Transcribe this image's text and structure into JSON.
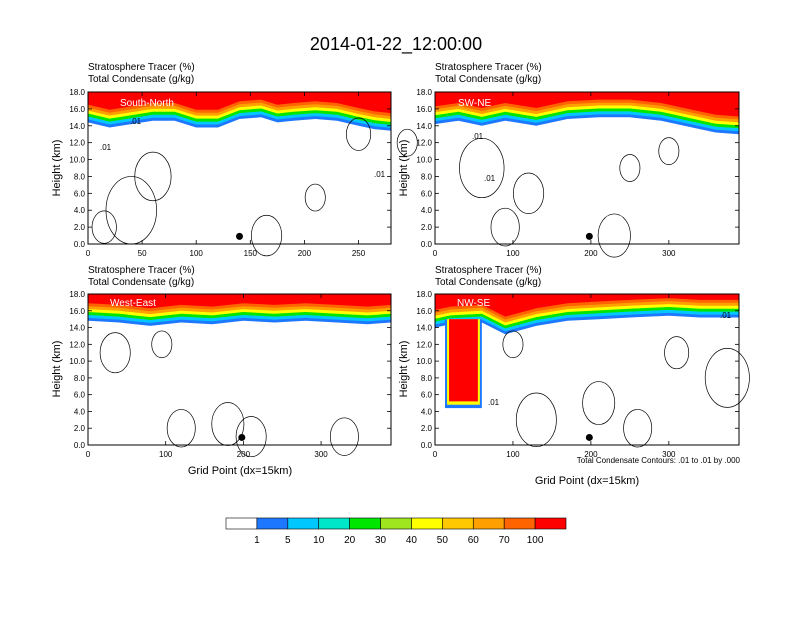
{
  "title": "2014-01-22_12:00:00",
  "footnote": "Total Condensate Contours: .01 to .01 by .000",
  "legend": {
    "ticks": [
      "1",
      "5",
      "10",
      "20",
      "30",
      "40",
      "50",
      "60",
      "70",
      "100"
    ],
    "colors": [
      "#ffffff",
      "#1e78ff",
      "#00c8ff",
      "#00e6c8",
      "#00e600",
      "#a0e61e",
      "#ffff00",
      "#ffc800",
      "#ffa000",
      "#ff6400",
      "#ff0000"
    ]
  },
  "chart_data": [
    {
      "type": "heatmap",
      "frame_label": "South-North",
      "title_line1": "Stratosphere Tracer   (%)",
      "title_line2": "Total Condensate   (g/kg)",
      "ylabel": "Height (km)",
      "xlabel": "",
      "xlim": [
        0,
        280
      ],
      "ylim": [
        0,
        18
      ],
      "xticks": [
        "0",
        "50",
        "100",
        "150",
        "200",
        "250"
      ],
      "yticks": [
        "0.0",
        "2.0",
        "4.0",
        "6.0",
        "8.0",
        "10.0",
        "12.0",
        "14.0",
        "16.0",
        "18.0"
      ],
      "marker_x": 140,
      "contour_labels": [
        ".01",
        ".01",
        ".01"
      ],
      "tropopause_km": [
        [
          0,
          14.4
        ],
        [
          20,
          13.8
        ],
        [
          40,
          14.2
        ],
        [
          60,
          14.6
        ],
        [
          80,
          14.6
        ],
        [
          100,
          13.8
        ],
        [
          120,
          13.8
        ],
        [
          140,
          14.8
        ],
        [
          160,
          15.0
        ],
        [
          175,
          14.4
        ],
        [
          190,
          14.6
        ],
        [
          210,
          14.8
        ],
        [
          230,
          14.6
        ],
        [
          250,
          14.0
        ],
        [
          265,
          13.6
        ],
        [
          280,
          13.4
        ]
      ]
    },
    {
      "type": "heatmap",
      "frame_label": "SW-NE",
      "title_line1": "Stratosphere Tracer   (%)",
      "title_line2": "Total Condensate   (g/kg)",
      "ylabel": "Height (km)",
      "xlabel": "",
      "xlim": [
        0,
        390
      ],
      "ylim": [
        0,
        18
      ],
      "xticks": [
        "0",
        "100",
        "200",
        "300"
      ],
      "yticks": [
        "0.0",
        "2.0",
        "4.0",
        "6.0",
        "8.0",
        "10.0",
        "12.0",
        "14.0",
        "16.0",
        "18.0"
      ],
      "marker_x": 198,
      "contour_labels": [
        ".01",
        ".01"
      ],
      "tropopause_km": [
        [
          0,
          14.2
        ],
        [
          30,
          14.6
        ],
        [
          60,
          14.0
        ],
        [
          90,
          14.6
        ],
        [
          130,
          14.0
        ],
        [
          170,
          14.8
        ],
        [
          210,
          15.0
        ],
        [
          250,
          15.0
        ],
        [
          290,
          14.6
        ],
        [
          330,
          13.8
        ],
        [
          360,
          13.2
        ],
        [
          390,
          13.0
        ]
      ]
    },
    {
      "type": "heatmap",
      "frame_label": "West-East",
      "title_line1": "Stratosphere Tracer   (%)",
      "title_line2": "Total Condensate   (g/kg)",
      "ylabel": "Height (km)",
      "xlabel": "Grid Point (dx=15km)",
      "xlim": [
        0,
        390
      ],
      "ylim": [
        0,
        18
      ],
      "xticks": [
        "0",
        "100",
        "200",
        "300"
      ],
      "yticks": [
        "0.0",
        "2.0",
        "4.0",
        "6.0",
        "8.0",
        "10.0",
        "12.0",
        "14.0",
        "16.0",
        "18.0"
      ],
      "marker_x": 198,
      "contour_labels": [],
      "tropopause_km": [
        [
          0,
          14.8
        ],
        [
          40,
          14.6
        ],
        [
          80,
          14.2
        ],
        [
          120,
          14.6
        ],
        [
          160,
          14.4
        ],
        [
          200,
          14.8
        ],
        [
          240,
          14.6
        ],
        [
          280,
          14.8
        ],
        [
          320,
          14.6
        ],
        [
          360,
          14.4
        ],
        [
          390,
          14.6
        ]
      ]
    },
    {
      "type": "heatmap",
      "frame_label": "NW-SE",
      "title_line1": "Stratosphere Tracer   (%)",
      "title_line2": "Total Condensate   (g/kg)",
      "ylabel": "Height (km)",
      "xlabel": "Grid Point (dx=15km)",
      "xlim": [
        0,
        390
      ],
      "ylim": [
        0,
        18
      ],
      "xticks": [
        "0",
        "100",
        "200",
        "300"
      ],
      "yticks": [
        "0.0",
        "2.0",
        "4.0",
        "6.0",
        "8.0",
        "10.0",
        "12.0",
        "14.0",
        "16.0",
        "18.0"
      ],
      "marker_x": 198,
      "contour_labels": [
        ".01",
        ".01"
      ],
      "tropopause_km": [
        [
          0,
          14.0
        ],
        [
          20,
          14.4
        ],
        [
          60,
          14.6
        ],
        [
          90,
          13.2
        ],
        [
          130,
          14.2
        ],
        [
          170,
          14.8
        ],
        [
          210,
          15.0
        ],
        [
          250,
          15.2
        ],
        [
          300,
          15.4
        ],
        [
          340,
          15.2
        ],
        [
          390,
          15.2
        ]
      ],
      "intrusion_km": {
        "x": [
          18,
          55
        ],
        "bottom": 5.2
      }
    }
  ]
}
